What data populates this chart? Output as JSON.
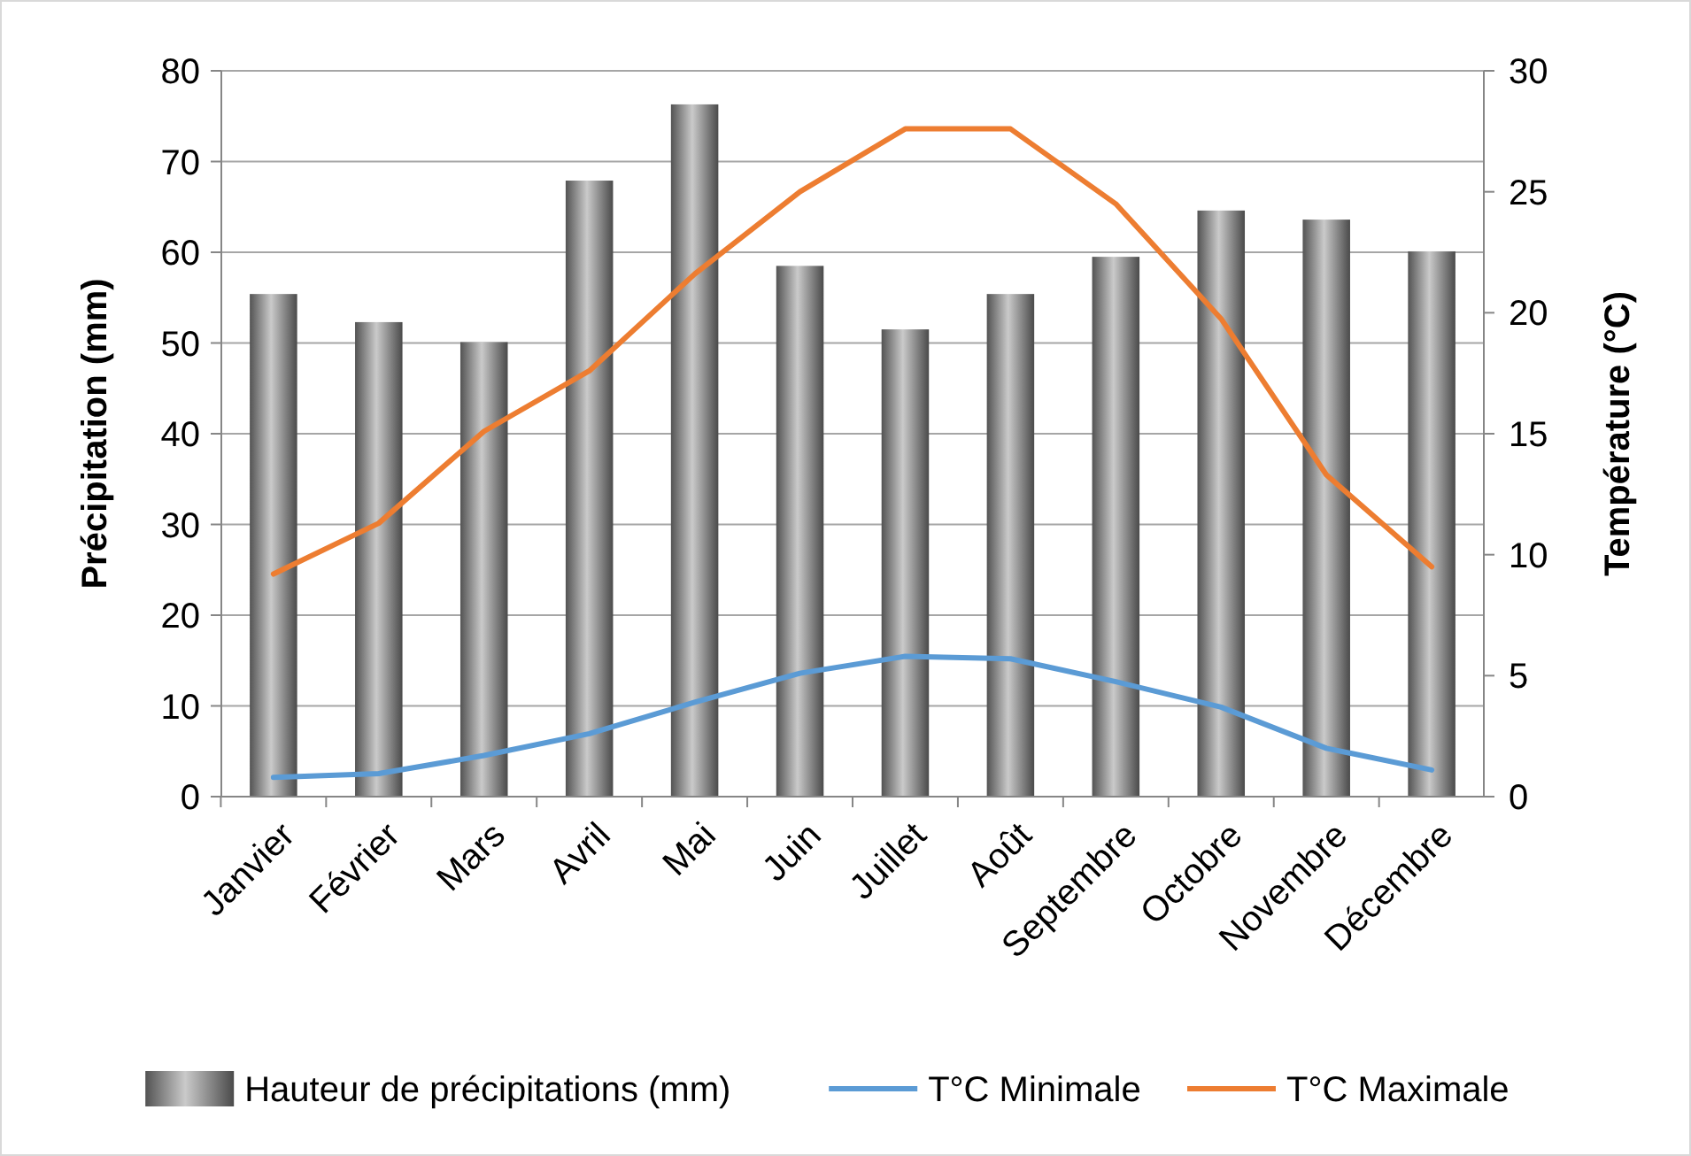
{
  "chart_data": {
    "type": "bar",
    "categories": [
      "Janvier",
      "Février",
      "Mars",
      "Avril",
      "Mai",
      "Juin",
      "Juillet",
      "Août",
      "Septembre",
      "Octobre",
      "Novembre",
      "Décembre"
    ],
    "ylabel": "Précipitation (mm)",
    "y2label": "Température (°C)",
    "ylim": [
      0,
      80
    ],
    "yticks": [
      0,
      10,
      20,
      30,
      40,
      50,
      60,
      70,
      80
    ],
    "y2lim": [
      0,
      30
    ],
    "y2ticks": [
      0,
      5,
      10,
      15,
      20,
      25,
      30
    ],
    "grid": "y",
    "legend": "bottom",
    "series": [
      {
        "name": "Hauteur de précipitations (mm)",
        "color": "#7f7f7f",
        "values": [
          55.4,
          52.3,
          50.1,
          67.9,
          76.3,
          58.5,
          51.5,
          55.4,
          59.5,
          64.6,
          63.6,
          60.1
        ]
      },
      {
        "name": "T°C Minimale",
        "type": "line",
        "axis": "y2",
        "color": "#5b9bd5",
        "values": [
          0.8,
          0.95,
          1.7,
          2.6,
          3.9,
          5.1,
          5.8,
          5.7,
          4.75,
          3.7,
          2.0,
          1.1
        ]
      },
      {
        "name": "T°C Maximale",
        "type": "line",
        "axis": "y2",
        "color": "#ed7d31",
        "values": [
          9.2,
          11.3,
          15.1,
          17.6,
          21.6,
          25.0,
          27.6,
          27.6,
          24.5,
          19.75,
          13.3,
          9.5
        ]
      }
    ]
  }
}
